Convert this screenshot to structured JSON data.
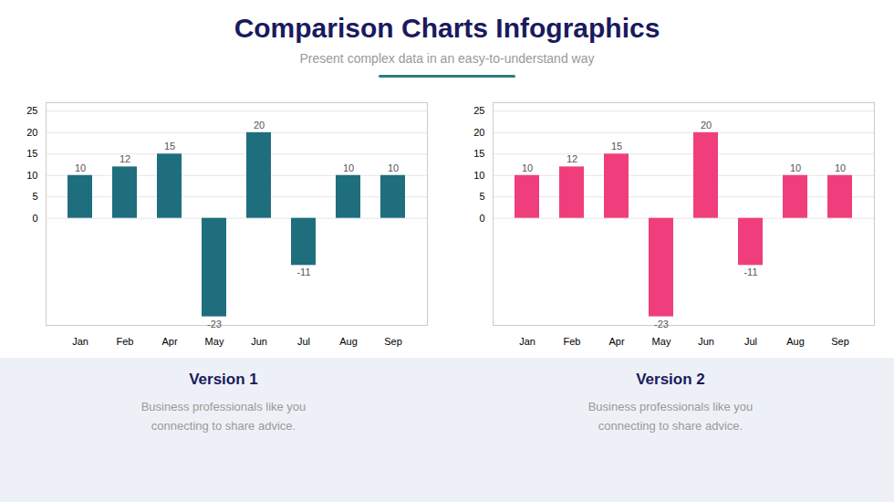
{
  "title": "Comparison Charts Infographics",
  "subtitle": "Present complex data in an easy-to-understand way",
  "chart_data": [
    {
      "type": "bar",
      "title": "Version 1",
      "annotations": [
        "Business professionals like you\nconnecting to share advice."
      ],
      "categories": [
        "Jan",
        "Feb",
        "Apr",
        "May",
        "Jun",
        "Jul",
        "Aug",
        "Sep"
      ],
      "values": [
        10,
        12,
        15,
        -23,
        20,
        -11,
        10,
        10
      ],
      "color": "#1e6e7e",
      "ylim": [
        -25,
        27
      ],
      "yticks": [
        0,
        5,
        10,
        15,
        20,
        25
      ],
      "grid": true,
      "data_labels": true
    },
    {
      "type": "bar",
      "title": "Version 2",
      "annotations": [
        "Business professionals like you\nconnecting to share advice."
      ],
      "categories": [
        "Jan",
        "Feb",
        "Apr",
        "May",
        "Jun",
        "Jul",
        "Aug",
        "Sep"
      ],
      "values": [
        10,
        12,
        15,
        -23,
        20,
        -11,
        10,
        10
      ],
      "color": "#f03e7c",
      "ylim": [
        -25,
        27
      ],
      "yticks": [
        0,
        5,
        10,
        15,
        20,
        25
      ],
      "grid": true,
      "data_labels": true
    }
  ]
}
